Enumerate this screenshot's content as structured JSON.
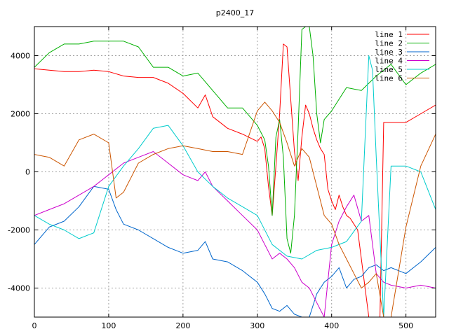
{
  "chart_data": {
    "type": "line",
    "title": "p2400_17",
    "xlabel": "",
    "ylabel": "",
    "xlim": [
      0,
      540
    ],
    "ylim": [
      -5000,
      5000
    ],
    "xticks": [
      0,
      100,
      200,
      300,
      400,
      500
    ],
    "yticks": [
      -4000,
      -2000,
      0,
      2000,
      4000
    ],
    "grid": true,
    "legend_position": "top-right",
    "series": [
      {
        "name": "line 1",
        "color": "#ff0000",
        "x": [
          0,
          20,
          40,
          60,
          80,
          100,
          120,
          140,
          160,
          180,
          200,
          220,
          230,
          240,
          260,
          280,
          300,
          305,
          310,
          315,
          320,
          325,
          330,
          335,
          340,
          345,
          350,
          355,
          360,
          365,
          370,
          375,
          380,
          385,
          390,
          395,
          400,
          405,
          410,
          415,
          420,
          425,
          430,
          435,
          440,
          445,
          450,
          455,
          460,
          465,
          470,
          480,
          500,
          520,
          540
        ],
        "y": [
          3550,
          3500,
          3450,
          3450,
          3500,
          3450,
          3300,
          3250,
          3250,
          3050,
          2700,
          2200,
          2650,
          1900,
          1500,
          1300,
          1050,
          1200,
          800,
          -500,
          -1500,
          200,
          2000,
          4400,
          4300,
          2500,
          700,
          -300,
          1200,
          2300,
          2000,
          1500,
          1100,
          800,
          600,
          -600,
          -1000,
          -1300,
          -800,
          -1200,
          -1500,
          -1600,
          -1800,
          -2000,
          -3000,
          -4000,
          -5000,
          -5000,
          -5000,
          -5000,
          1700,
          1700,
          1700,
          2000,
          2300
        ]
      },
      {
        "name": "line 2",
        "color": "#00b000",
        "x": [
          0,
          20,
          40,
          60,
          80,
          100,
          120,
          140,
          160,
          180,
          200,
          220,
          240,
          260,
          280,
          300,
          310,
          315,
          320,
          325,
          330,
          335,
          340,
          345,
          350,
          355,
          360,
          365,
          370,
          375,
          380,
          385,
          390,
          400,
          420,
          440,
          460,
          480,
          500,
          520,
          540
        ],
        "y": [
          3600,
          4100,
          4400,
          4400,
          4500,
          4500,
          4500,
          4300,
          3600,
          3600,
          3300,
          3400,
          2800,
          2200,
          2200,
          1600,
          1100,
          200,
          -1500,
          1200,
          1800,
          500,
          -2300,
          -2800,
          -1500,
          1500,
          4900,
          5000,
          5000,
          4000,
          2000,
          1000,
          1800,
          2100,
          2900,
          2800,
          3300,
          3700,
          3000,
          3400,
          3700
        ]
      },
      {
        "name": "line 3",
        "color": "#0066cc",
        "x": [
          0,
          20,
          40,
          60,
          80,
          100,
          110,
          120,
          140,
          160,
          180,
          200,
          220,
          230,
          240,
          260,
          280,
          300,
          310,
          320,
          330,
          340,
          350,
          360,
          370,
          380,
          390,
          400,
          410,
          420,
          430,
          440,
          450,
          460,
          470,
          480,
          500,
          520,
          540
        ],
        "y": [
          -2500,
          -1900,
          -1700,
          -1200,
          -500,
          -600,
          -1300,
          -1800,
          -2000,
          -2300,
          -2600,
          -2800,
          -2700,
          -2400,
          -3000,
          -3100,
          -3400,
          -3800,
          -4200,
          -4700,
          -4800,
          -4600,
          -4900,
          -5000,
          -5000,
          -4200,
          -3800,
          -3600,
          -3300,
          -4000,
          -3700,
          -3600,
          -3300,
          -3200,
          -3400,
          -3300,
          -3500,
          -3100,
          -2600
        ]
      },
      {
        "name": "line 4",
        "color": "#cc00cc",
        "x": [
          0,
          20,
          40,
          60,
          80,
          100,
          120,
          140,
          160,
          180,
          200,
          220,
          230,
          240,
          260,
          280,
          300,
          310,
          320,
          330,
          340,
          350,
          360,
          370,
          380,
          390,
          400,
          410,
          420,
          430,
          440,
          450,
          460,
          470,
          480,
          500,
          520,
          540
        ],
        "y": [
          -1500,
          -1300,
          -1100,
          -800,
          -500,
          -100,
          300,
          500,
          700,
          300,
          -100,
          -300,
          0,
          -500,
          -1000,
          -1500,
          -2000,
          -2500,
          -3000,
          -2800,
          -3000,
          -3300,
          -3800,
          -4000,
          -4500,
          -5000,
          -2500,
          -1700,
          -1200,
          -800,
          -1700,
          -1500,
          -3500,
          -3800,
          -3900,
          -4000,
          -3900,
          -4000
        ]
      },
      {
        "name": "line 5",
        "color": "#00cccc",
        "x": [
          0,
          20,
          40,
          60,
          80,
          100,
          120,
          140,
          160,
          180,
          200,
          220,
          240,
          260,
          280,
          300,
          320,
          340,
          360,
          380,
          400,
          420,
          440,
          450,
          455,
          460,
          470,
          480,
          500,
          520,
          540
        ],
        "y": [
          -1500,
          -1800,
          -2000,
          -2300,
          -2100,
          -500,
          200,
          800,
          1500,
          1600,
          900,
          0,
          -500,
          -900,
          -1200,
          -1500,
          -2500,
          -2900,
          -3000,
          -2700,
          -2600,
          -2400,
          -1700,
          4000,
          3500,
          500,
          -5000,
          200,
          200,
          0,
          -1300
        ]
      },
      {
        "name": "line 6",
        "color": "#cc5500",
        "x": [
          0,
          20,
          40,
          60,
          80,
          100,
          110,
          120,
          140,
          160,
          180,
          200,
          220,
          240,
          260,
          280,
          300,
          310,
          320,
          330,
          340,
          350,
          360,
          370,
          380,
          390,
          400,
          410,
          420,
          430,
          440,
          450,
          460,
          470,
          480,
          500,
          520,
          540
        ],
        "y": [
          600,
          500,
          200,
          1100,
          1300,
          1000,
          -900,
          -700,
          300,
          600,
          800,
          900,
          800,
          700,
          700,
          600,
          2100,
          2400,
          2100,
          1700,
          1000,
          200,
          800,
          500,
          -500,
          -1500,
          -1800,
          -2500,
          -3000,
          -3500,
          -4000,
          -3800,
          -3500,
          -5000,
          -5000,
          -1900,
          200,
          1300
        ]
      }
    ]
  }
}
